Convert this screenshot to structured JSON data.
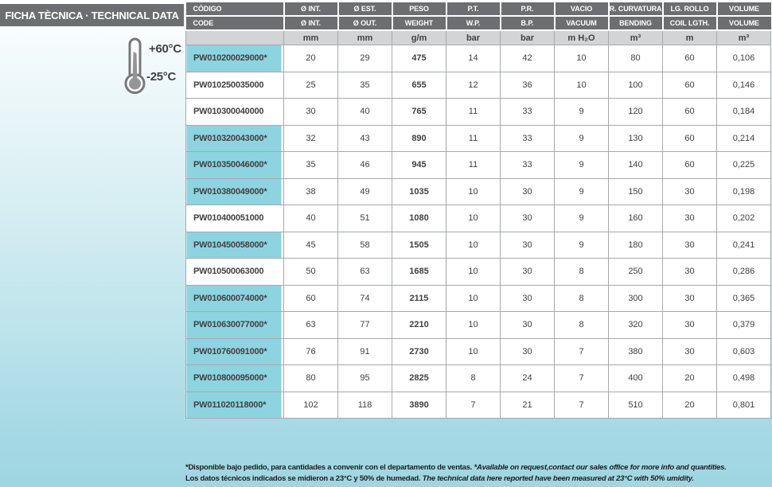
{
  "page": {
    "title": "FICHA TÈCNICA · TECHNICAL DATA"
  },
  "temperature": {
    "max": "+60°C",
    "min": "-25°C"
  },
  "table": {
    "columns": [
      {
        "es": "CÓDIGO",
        "en": "CODE",
        "unit": ""
      },
      {
        "es": "Ø INT.",
        "en": "Ø INT.",
        "unit": "mm"
      },
      {
        "es": "Ø EST.",
        "en": "Ø OUT.",
        "unit": "mm"
      },
      {
        "es": "PESO",
        "en": "WEIGHT",
        "unit": "g/m"
      },
      {
        "es": "P.T.",
        "en": "W.P.",
        "unit": "bar"
      },
      {
        "es": "P.R.",
        "en": "B.P.",
        "unit": "bar"
      },
      {
        "es": "VACIO",
        "en": "VACUUM",
        "unit": "m H₂O"
      },
      {
        "es": "R. CURVATURA",
        "en": "BENDING",
        "unit": "m³"
      },
      {
        "es": "LG. ROLLO",
        "en": "COIL LGTH.",
        "unit": "m"
      },
      {
        "es": "VOLUME",
        "en": "VOLUME",
        "unit": "m³"
      }
    ],
    "rows": [
      {
        "code": "PW010200029000*",
        "highlighted": true,
        "values": [
          "20",
          "29",
          "475",
          "14",
          "42",
          "10",
          "80",
          "60",
          "0,106"
        ]
      },
      {
        "code": "PW010250035000",
        "highlighted": false,
        "values": [
          "25",
          "35",
          "655",
          "12",
          "36",
          "10",
          "100",
          "60",
          "0,146"
        ]
      },
      {
        "code": "PW010300040000",
        "highlighted": false,
        "values": [
          "30",
          "40",
          "765",
          "11",
          "33",
          "9",
          "120",
          "60",
          "0,184"
        ]
      },
      {
        "code": "PW010320043000*",
        "highlighted": true,
        "values": [
          "32",
          "43",
          "890",
          "11",
          "33",
          "9",
          "130",
          "60",
          "0,214"
        ]
      },
      {
        "code": "PW010350046000*",
        "highlighted": true,
        "values": [
          "35",
          "46",
          "945",
          "11",
          "33",
          "9",
          "140",
          "60",
          "0,225"
        ]
      },
      {
        "code": "PW010380049000*",
        "highlighted": true,
        "values": [
          "38",
          "49",
          "1035",
          "10",
          "30",
          "9",
          "150",
          "30",
          "0,198"
        ]
      },
      {
        "code": "PW010400051000",
        "highlighted": false,
        "values": [
          "40",
          "51",
          "1080",
          "10",
          "30",
          "9",
          "160",
          "30",
          "0,202"
        ]
      },
      {
        "code": "PW010450058000*",
        "highlighted": true,
        "values": [
          "45",
          "58",
          "1505",
          "10",
          "30",
          "9",
          "180",
          "30",
          "0,241"
        ]
      },
      {
        "code": "PW010500063000",
        "highlighted": false,
        "values": [
          "50",
          "63",
          "1685",
          "10",
          "30",
          "8",
          "250",
          "30",
          "0,286"
        ]
      },
      {
        "code": "PW010600074000*",
        "highlighted": true,
        "values": [
          "60",
          "74",
          "2115",
          "10",
          "30",
          "8",
          "300",
          "30",
          "0,365"
        ]
      },
      {
        "code": "PW010630077000*",
        "highlighted": true,
        "values": [
          "63",
          "77",
          "2210",
          "10",
          "30",
          "8",
          "320",
          "30",
          "0,379"
        ]
      },
      {
        "code": "PW010760091000*",
        "highlighted": true,
        "values": [
          "76",
          "91",
          "2730",
          "10",
          "30",
          "7",
          "380",
          "30",
          "0,603"
        ]
      },
      {
        "code": "PW010800095000*",
        "highlighted": true,
        "values": [
          "80",
          "95",
          "2825",
          "8",
          "24",
          "7",
          "400",
          "20",
          "0,498"
        ]
      },
      {
        "code": "PW011020118000*",
        "highlighted": true,
        "values": [
          "102",
          "118",
          "3890",
          "7",
          "21",
          "7",
          "510",
          "20",
          "0,801"
        ]
      }
    ]
  },
  "footer": {
    "line1_es": "*Disponible bajo pedido, para cantidades a convenir con el departamento de ventas. ",
    "line1_en": "*Available on request,contact our sales office for more info and quantities.",
    "line2_es": "Los datos técnicos indicados se midieron a 23°C y 50% de humedad. ",
    "line2_en": "The technical data here reported have been measured at 23°C with 50% umidity."
  },
  "colors": {
    "header_gray": "#6d6e71",
    "units_gray": "#d2d4d5",
    "highlight_blue": "#8ed3e0",
    "border_gray": "#a7a9ac",
    "text_dark": "#414042"
  }
}
